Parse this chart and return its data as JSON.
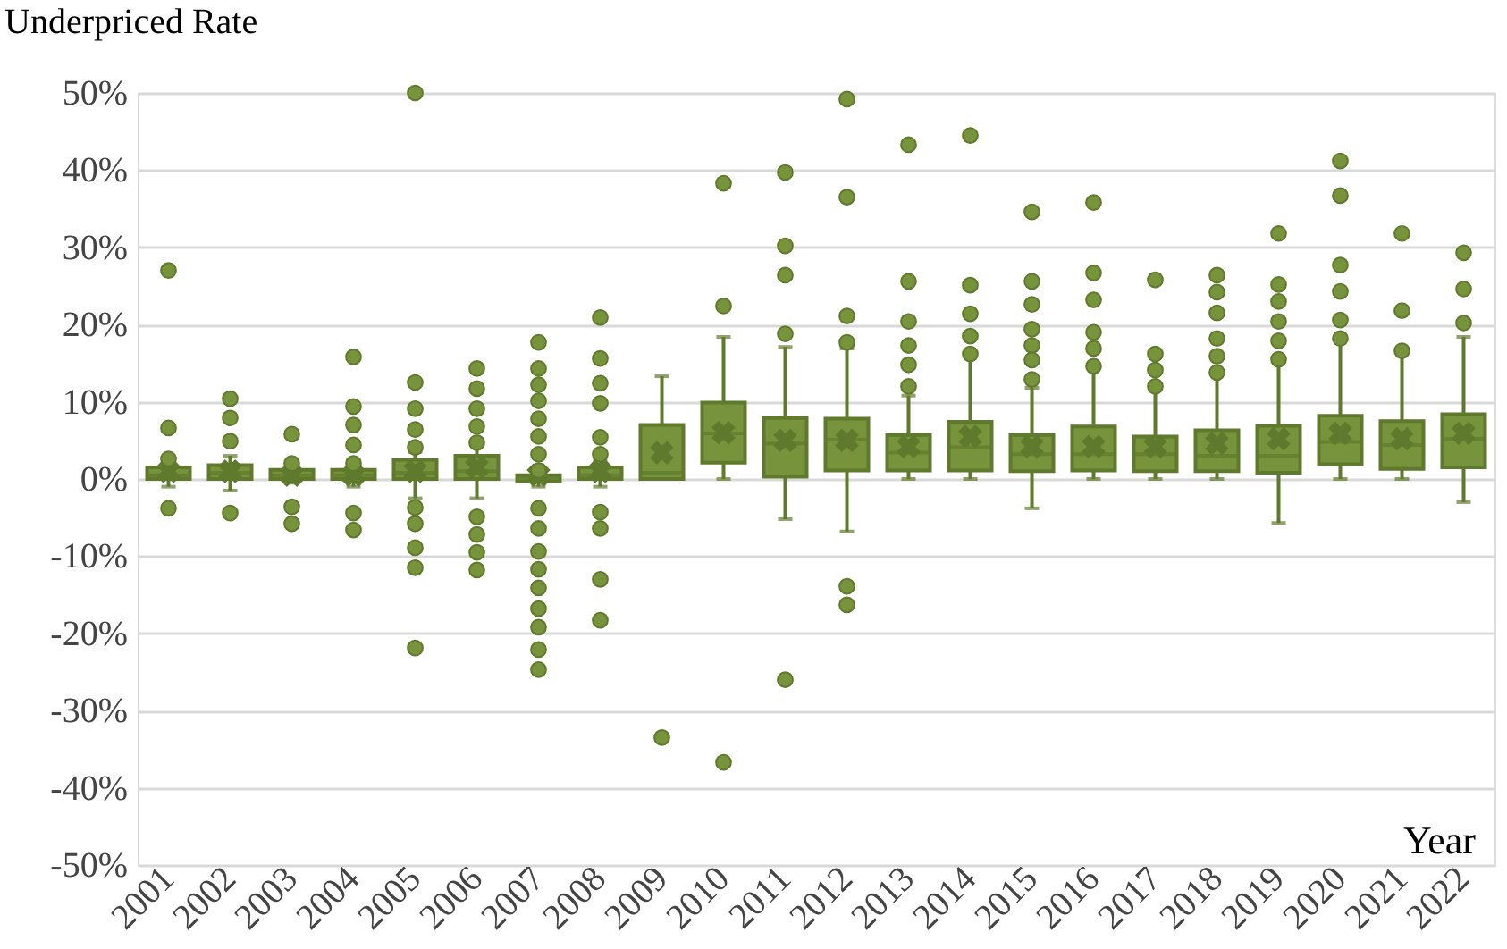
{
  "chart_data": {
    "type": "box",
    "ylabel": "Underpriced Rate",
    "xlabel": "Year",
    "categories": [
      "2001",
      "2002",
      "2003",
      "2004",
      "2005",
      "2006",
      "2007",
      "2008",
      "2009",
      "2010",
      "2011",
      "2012",
      "2013",
      "2014",
      "2015",
      "2016",
      "2017",
      "2018",
      "2019",
      "2020",
      "2021",
      "2022"
    ],
    "ylim": [
      -50,
      50
    ],
    "yticks": [
      {
        "value": -50,
        "label": "-50%"
      },
      {
        "value": -40,
        "label": "-40%"
      },
      {
        "value": -30,
        "label": "-30%"
      },
      {
        "value": -20,
        "label": "-20%"
      },
      {
        "value": -10,
        "label": "-10%"
      },
      {
        "value": 0,
        "label": "0%"
      },
      {
        "value": 10,
        "label": "10%"
      },
      {
        "value": 20,
        "label": "20%"
      },
      {
        "value": 30,
        "label": "30%"
      },
      {
        "value": 40,
        "label": "40%"
      },
      {
        "value": 50,
        "label": "50%"
      }
    ],
    "grid": "y",
    "marker": "circle",
    "series": [
      {
        "color": "#77933c",
        "boxes": [
          {
            "low": -1,
            "q1": 0,
            "median": 0.5,
            "q3": 1.5,
            "high": 2.5,
            "mean": 1,
            "outliers": [
              27,
              6.6,
              2.6,
              -3.8
            ]
          },
          {
            "low": -1.5,
            "q1": 0,
            "median": 0.8,
            "q3": 1.8,
            "high": 3,
            "mean": 1,
            "outliers": [
              10.4,
              7.9,
              4.9,
              -4.4
            ]
          },
          {
            "low": -0.5,
            "q1": 0,
            "median": 0.5,
            "q3": 1.2,
            "high": 2,
            "mean": 0.5,
            "outliers": [
              5.8,
              2,
              -3.6,
              -5.8
            ]
          },
          {
            "low": -1,
            "q1": 0,
            "median": 0.5,
            "q3": 1.2,
            "high": 2.5,
            "mean": 0.5,
            "outliers": [
              15.8,
              9.4,
              7,
              4.4,
              2,
              -4.4,
              -6.6
            ]
          },
          {
            "low": -2.5,
            "q1": 0,
            "median": 0.8,
            "q3": 2.5,
            "high": 3.5,
            "mean": 1,
            "outliers": [
              50,
              12.5,
              9.1,
              6.4,
              4.1,
              -3.7,
              -5.8,
              -8.9,
              -11.5,
              -21.9
            ]
          },
          {
            "low": -2.5,
            "q1": 0,
            "median": 1,
            "q3": 3,
            "high": 4.5,
            "mean": 1.5,
            "outliers": [
              14.3,
              11.7,
              9.1,
              6.8,
              4.7,
              -4.9,
              -7.2,
              -9.5,
              -11.8
            ]
          },
          {
            "low": -1,
            "q1": -0.3,
            "median": 0.2,
            "q3": 0.5,
            "high": 1.5,
            "mean": 0.5,
            "outliers": [
              17.7,
              14.3,
              12.2,
              10.1,
              7.8,
              5.5,
              3.2,
              1.1,
              -3.8,
              -6.4,
              -9.4,
              -11.7,
              -14.1,
              -16.8,
              -19.2,
              -22.1,
              -24.7
            ]
          },
          {
            "low": -1,
            "q1": 0,
            "median": 0.5,
            "q3": 1.5,
            "high": 2.5,
            "mean": 1,
            "outliers": [
              20.9,
              15.6,
              12.4,
              9.8,
              5.4,
              3.2,
              -4.3,
              -6.4,
              -13,
              -18.3
            ]
          },
          {
            "low": 0,
            "q1": 0,
            "median": 0.8,
            "q3": 7,
            "high": 13.3,
            "mean": 3.4,
            "outliers": [
              -33.5
            ]
          },
          {
            "low": 0,
            "q1": 2.1,
            "median": 5.9,
            "q3": 9.9,
            "high": 18.4,
            "mean": 6,
            "outliers": [
              38.3,
              22.4,
              -36.7
            ]
          },
          {
            "low": -5.2,
            "q1": 0.3,
            "median": 4.6,
            "q3": 7.9,
            "high": 17.1,
            "mean": 5,
            "outliers": [
              39.7,
              30.2,
              26.4,
              18.8,
              -26
            ]
          },
          {
            "low": -6.8,
            "q1": 1.1,
            "median": 5.1,
            "q3": 7.8,
            "high": 16.9,
            "mean": 5,
            "outliers": [
              49.2,
              36.5,
              21.1,
              17.7,
              -13.9,
              -16.3
            ]
          },
          {
            "low": 0,
            "q1": 1.1,
            "median": 3.4,
            "q3": 5.7,
            "high": 10.8,
            "mean": 4.2,
            "outliers": [
              43.3,
              25.6,
              20.4,
              17.3,
              14.8,
              12
            ]
          },
          {
            "low": 0,
            "q1": 1.1,
            "median": 4.1,
            "q3": 7.4,
            "high": 16,
            "mean": 5.5,
            "outliers": [
              44.5,
              25.1,
              21.4,
              18.5,
              16.2
            ]
          },
          {
            "low": -3.8,
            "q1": 1,
            "median": 3.2,
            "q3": 5.7,
            "high": 11.8,
            "mean": 4.2,
            "outliers": [
              34.6,
              25.6,
              22.6,
              19.4,
              17.3,
              15.4,
              12.9
            ]
          },
          {
            "low": 0,
            "q1": 1.1,
            "median": 3.2,
            "q3": 6.8,
            "high": 14.6,
            "mean": 4.2,
            "outliers": [
              35.8,
              26.7,
              23.2,
              19,
              16.9,
              14.6
            ]
          },
          {
            "low": 0,
            "q1": 1,
            "median": 3.2,
            "q3": 5.5,
            "high": 11.8,
            "mean": 4.2,
            "outliers": [
              25.8,
              16.2,
              14.1,
              12
            ]
          },
          {
            "low": 0,
            "q1": 1,
            "median": 3,
            "q3": 6.3,
            "high": 13.8,
            "mean": 4.6,
            "outliers": [
              26.4,
              24.2,
              21.5,
              18.2,
              15.9,
              13.8
            ]
          },
          {
            "low": -5.7,
            "q1": 0.8,
            "median": 3,
            "q3": 6.9,
            "high": 15.5,
            "mean": 5.2,
            "outliers": [
              31.8,
              25.2,
              23,
              20.4,
              17.9,
              15.5
            ]
          },
          {
            "low": 0,
            "q1": 1.9,
            "median": 4.8,
            "q3": 8.2,
            "high": 18.2,
            "mean": 5.9,
            "outliers": [
              41.2,
              36.7,
              27.7,
              24.3,
              20.6,
              18.2
            ]
          },
          {
            "low": 0,
            "q1": 1.3,
            "median": 4.4,
            "q3": 7.5,
            "high": 16.6,
            "mean": 5.2,
            "outliers": [
              31.8,
              21.8,
              16.6
            ]
          },
          {
            "low": -3,
            "q1": 1.5,
            "median": 5.2,
            "q3": 8.4,
            "high": 18.4,
            "mean": 5.9,
            "outliers": [
              29.3,
              24.6,
              20.2
            ]
          }
        ]
      }
    ]
  }
}
